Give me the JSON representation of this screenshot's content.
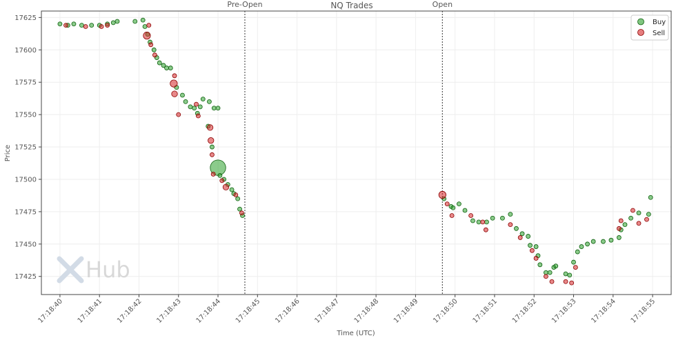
{
  "chart_data": {
    "type": "scatter",
    "title": "NQ Trades",
    "xlabel": "Time (UTC)",
    "ylabel": "Price",
    "xlim": [
      "17:18:39.53",
      "17:18:55.47"
    ],
    "ylim": [
      17411,
      17630
    ],
    "yticks": [
      17425,
      17450,
      17475,
      17500,
      17525,
      17550,
      17575,
      17600,
      17625
    ],
    "xticks": [
      "17:18:40",
      "17:18:41",
      "17:18:42",
      "17:18:43",
      "17:18:44",
      "17:18:45",
      "17:18:46",
      "17:18:47",
      "17:18:48",
      "17:18:49",
      "17:18:50",
      "17:18:51",
      "17:18:52",
      "17:18:53",
      "17:18:54",
      "17:18:55"
    ],
    "grid": true,
    "legend_position": "top-right",
    "events": [
      {
        "label": "Pre-Open",
        "time": "17:18:44.68"
      },
      {
        "label": "Open",
        "time": "17:18:49.68"
      }
    ],
    "watermark": "Hub",
    "colors": {
      "buy": "#2ca02c",
      "buy_edge": "#0b5e0b",
      "sell": "#d62728",
      "sell_edge": "#8b0000",
      "grid": "#eeeeee",
      "axis": "#444444"
    },
    "series": [
      {
        "name": "Buy",
        "points": [
          {
            "t": "17:18:40.00",
            "p": 17620,
            "s": 1
          },
          {
            "t": "17:18:40.20",
            "p": 17619,
            "s": 1
          },
          {
            "t": "17:18:40.35",
            "p": 17620,
            "s": 1
          },
          {
            "t": "17:18:40.55",
            "p": 17619,
            "s": 1
          },
          {
            "t": "17:18:40.80",
            "p": 17619,
            "s": 1
          },
          {
            "t": "17:18:41.00",
            "p": 17619,
            "s": 1
          },
          {
            "t": "17:18:41.20",
            "p": 17620,
            "s": 1
          },
          {
            "t": "17:18:41.35",
            "p": 17621,
            "s": 1
          },
          {
            "t": "17:18:41.45",
            "p": 17622,
            "s": 1
          },
          {
            "t": "17:18:41.90",
            "p": 17622,
            "s": 1
          },
          {
            "t": "17:18:42.10",
            "p": 17623,
            "s": 1
          },
          {
            "t": "17:18:42.15",
            "p": 17618,
            "s": 1
          },
          {
            "t": "17:18:42.22",
            "p": 17612,
            "s": 1
          },
          {
            "t": "17:18:42.28",
            "p": 17606,
            "s": 1
          },
          {
            "t": "17:18:42.38",
            "p": 17600,
            "s": 1
          },
          {
            "t": "17:18:42.45",
            "p": 17594,
            "s": 1
          },
          {
            "t": "17:18:42.52",
            "p": 17590,
            "s": 1
          },
          {
            "t": "17:18:42.62",
            "p": 17588,
            "s": 1
          },
          {
            "t": "17:18:42.70",
            "p": 17586,
            "s": 1
          },
          {
            "t": "17:18:42.80",
            "p": 17586,
            "s": 1
          },
          {
            "t": "17:18:42.95",
            "p": 17571,
            "s": 1
          },
          {
            "t": "17:18:43.10",
            "p": 17565,
            "s": 1
          },
          {
            "t": "17:18:43.18",
            "p": 17560,
            "s": 1
          },
          {
            "t": "17:18:43.30",
            "p": 17556,
            "s": 1
          },
          {
            "t": "17:18:43.40",
            "p": 17555,
            "s": 1
          },
          {
            "t": "17:18:43.48",
            "p": 17551,
            "s": 1
          },
          {
            "t": "17:18:43.55",
            "p": 17556,
            "s": 1
          },
          {
            "t": "17:18:43.62",
            "p": 17562,
            "s": 1
          },
          {
            "t": "17:18:43.78",
            "p": 17560,
            "s": 1
          },
          {
            "t": "17:18:43.90",
            "p": 17555,
            "s": 1
          },
          {
            "t": "17:18:44.00",
            "p": 17555,
            "s": 1
          },
          {
            "t": "17:18:43.75",
            "p": 17541,
            "s": 1
          },
          {
            "t": "17:18:43.85",
            "p": 17525,
            "s": 1
          },
          {
            "t": "17:18:44.00",
            "p": 17509,
            "s": 14
          },
          {
            "t": "17:18:44.05",
            "p": 17503,
            "s": 1
          },
          {
            "t": "17:18:44.15",
            "p": 17500,
            "s": 1
          },
          {
            "t": "17:18:44.25",
            "p": 17496,
            "s": 1
          },
          {
            "t": "17:18:44.35",
            "p": 17492,
            "s": 1
          },
          {
            "t": "17:18:44.40",
            "p": 17489,
            "s": 1
          },
          {
            "t": "17:18:44.50",
            "p": 17485,
            "s": 1
          },
          {
            "t": "17:18:44.55",
            "p": 17477,
            "s": 1
          },
          {
            "t": "17:18:44.62",
            "p": 17472,
            "s": 1
          },
          {
            "t": "17:18:49.72",
            "p": 17485,
            "s": 1
          },
          {
            "t": "17:18:49.90",
            "p": 17479,
            "s": 1
          },
          {
            "t": "17:18:49.95",
            "p": 17478,
            "s": 1
          },
          {
            "t": "17:18:50.10",
            "p": 17481,
            "s": 1
          },
          {
            "t": "17:18:50.25",
            "p": 17476,
            "s": 1
          },
          {
            "t": "17:18:50.45",
            "p": 17468,
            "s": 1
          },
          {
            "t": "17:18:50.60",
            "p": 17467,
            "s": 1
          },
          {
            "t": "17:18:50.80",
            "p": 17467,
            "s": 1
          },
          {
            "t": "17:18:50.95",
            "p": 17470,
            "s": 1
          },
          {
            "t": "17:18:51.20",
            "p": 17470,
            "s": 1
          },
          {
            "t": "17:18:51.40",
            "p": 17473,
            "s": 1
          },
          {
            "t": "17:18:51.55",
            "p": 17462,
            "s": 1
          },
          {
            "t": "17:18:51.70",
            "p": 17458,
            "s": 1
          },
          {
            "t": "17:18:51.85",
            "p": 17456,
            "s": 1
          },
          {
            "t": "17:18:51.90",
            "p": 17449,
            "s": 1
          },
          {
            "t": "17:18:52.05",
            "p": 17448,
            "s": 1
          },
          {
            "t": "17:18:52.10",
            "p": 17441,
            "s": 1
          },
          {
            "t": "17:18:52.15",
            "p": 17434,
            "s": 1
          },
          {
            "t": "17:18:52.30",
            "p": 17428,
            "s": 1
          },
          {
            "t": "17:18:52.40",
            "p": 17428,
            "s": 1
          },
          {
            "t": "17:18:52.50",
            "p": 17432,
            "s": 1
          },
          {
            "t": "17:18:52.55",
            "p": 17433,
            "s": 1
          },
          {
            "t": "17:18:52.80",
            "p": 17427,
            "s": 1
          },
          {
            "t": "17:18:52.90",
            "p": 17426,
            "s": 1
          },
          {
            "t": "17:18:53.00",
            "p": 17436,
            "s": 1
          },
          {
            "t": "17:18:53.10",
            "p": 17444,
            "s": 1
          },
          {
            "t": "17:18:53.20",
            "p": 17448,
            "s": 1
          },
          {
            "t": "17:18:53.35",
            "p": 17450,
            "s": 1
          },
          {
            "t": "17:18:53.50",
            "p": 17452,
            "s": 1
          },
          {
            "t": "17:18:53.75",
            "p": 17452,
            "s": 1
          },
          {
            "t": "17:18:53.95",
            "p": 17453,
            "s": 1
          },
          {
            "t": "17:18:54.15",
            "p": 17455,
            "s": 1
          },
          {
            "t": "17:18:54.20",
            "p": 17461,
            "s": 1
          },
          {
            "t": "17:18:54.30",
            "p": 17465,
            "s": 1
          },
          {
            "t": "17:18:54.45",
            "p": 17470,
            "s": 1
          },
          {
            "t": "17:18:54.65",
            "p": 17474,
            "s": 1
          },
          {
            "t": "17:18:54.90",
            "p": 17473,
            "s": 1
          },
          {
            "t": "17:18:54.95",
            "p": 17486,
            "s": 1
          }
        ]
      },
      {
        "name": "Sell",
        "points": [
          {
            "t": "17:18:40.15",
            "p": 17619,
            "s": 1
          },
          {
            "t": "17:18:40.65",
            "p": 17618,
            "s": 1
          },
          {
            "t": "17:18:41.05",
            "p": 17618,
            "s": 1
          },
          {
            "t": "17:18:41.20",
            "p": 17619,
            "s": 1
          },
          {
            "t": "17:18:42.20",
            "p": 17611,
            "s": 3
          },
          {
            "t": "17:18:42.25",
            "p": 17619,
            "s": 1
          },
          {
            "t": "17:18:42.30",
            "p": 17604,
            "s": 1
          },
          {
            "t": "17:18:42.40",
            "p": 17596,
            "s": 1
          },
          {
            "t": "17:18:42.90",
            "p": 17580,
            "s": 1
          },
          {
            "t": "17:18:42.88",
            "p": 17574,
            "s": 3
          },
          {
            "t": "17:18:42.90",
            "p": 17566,
            "s": 2
          },
          {
            "t": "17:18:43.00",
            "p": 17550,
            "s": 1
          },
          {
            "t": "17:18:43.45",
            "p": 17558,
            "s": 1
          },
          {
            "t": "17:18:43.50",
            "p": 17549,
            "s": 1
          },
          {
            "t": "17:18:43.80",
            "p": 17540,
            "s": 2
          },
          {
            "t": "17:18:43.82",
            "p": 17530,
            "s": 2
          },
          {
            "t": "17:18:43.85",
            "p": 17519,
            "s": 1
          },
          {
            "t": "17:18:43.88",
            "p": 17504,
            "s": 1
          },
          {
            "t": "17:18:44.10",
            "p": 17499,
            "s": 1
          },
          {
            "t": "17:18:44.20",
            "p": 17494,
            "s": 2
          },
          {
            "t": "17:18:44.45",
            "p": 17488,
            "s": 1
          },
          {
            "t": "17:18:44.60",
            "p": 17474,
            "s": 1
          },
          {
            "t": "17:18:49.68",
            "p": 17488,
            "s": 3
          },
          {
            "t": "17:18:49.80",
            "p": 17481,
            "s": 1
          },
          {
            "t": "17:18:49.92",
            "p": 17472,
            "s": 1
          },
          {
            "t": "17:18:50.40",
            "p": 17472,
            "s": 1
          },
          {
            "t": "17:18:50.70",
            "p": 17467,
            "s": 1
          },
          {
            "t": "17:18:50.78",
            "p": 17461,
            "s": 1
          },
          {
            "t": "17:18:51.40",
            "p": 17465,
            "s": 1
          },
          {
            "t": "17:18:51.65",
            "p": 17455,
            "s": 1
          },
          {
            "t": "17:18:51.95",
            "p": 17445,
            "s": 1
          },
          {
            "t": "17:18:52.05",
            "p": 17439,
            "s": 1
          },
          {
            "t": "17:18:52.30",
            "p": 17425,
            "s": 1
          },
          {
            "t": "17:18:52.45",
            "p": 17421,
            "s": 1
          },
          {
            "t": "17:18:52.80",
            "p": 17421,
            "s": 1
          },
          {
            "t": "17:18:52.95",
            "p": 17420,
            "s": 1
          },
          {
            "t": "17:18:53.05",
            "p": 17432,
            "s": 1
          },
          {
            "t": "17:18:54.15",
            "p": 17462,
            "s": 1
          },
          {
            "t": "17:18:54.20",
            "p": 17468,
            "s": 1
          },
          {
            "t": "17:18:54.50",
            "p": 17476,
            "s": 1
          },
          {
            "t": "17:18:54.65",
            "p": 17466,
            "s": 1
          },
          {
            "t": "17:18:54.85",
            "p": 17469,
            "s": 1
          }
        ]
      }
    ]
  }
}
